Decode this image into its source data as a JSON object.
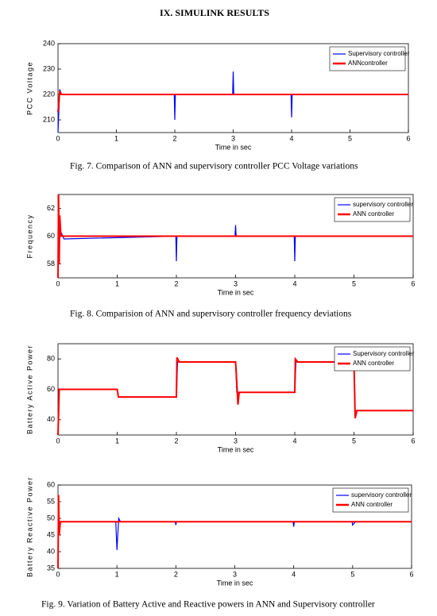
{
  "heading": "IX. SIMULINK RESULTS",
  "captions": [
    "Fig. 7. Comparison of ANN and supervisory controller PCC Voltage variations",
    "Fig. 8. Comparision of ANN and supervisory controller frequency deviations",
    "Fig. 9. Variation of Battery Active and Reactive powers in ANN and Supervisory controller"
  ],
  "chart_data": [
    {
      "type": "line",
      "xlabel": "Time in sec",
      "ylabel": "PCC Voltage",
      "xlim": [
        0,
        6
      ],
      "xticks": [
        0,
        1,
        2,
        3,
        4,
        5,
        6
      ],
      "ylim": [
        205,
        240
      ],
      "yticks": [
        210,
        220,
        230,
        240
      ],
      "series": [
        {
          "name": "Supervisory controller",
          "color": "#0000ff",
          "x": [
            0,
            0.03,
            0.06,
            1.99,
            2.0,
            2.01,
            2.99,
            3.0,
            3.01,
            3.99,
            4.0,
            4.01,
            6
          ],
          "values": [
            205,
            222,
            220,
            220,
            210,
            220,
            220,
            229,
            220,
            220,
            211,
            220,
            220
          ]
        },
        {
          "name": "ANNcontroller",
          "color": "#ff0000",
          "x": [
            0,
            0.03,
            0.06,
            6
          ],
          "values": [
            213,
            221,
            220,
            220
          ]
        }
      ]
    },
    {
      "type": "line",
      "xlabel": "Time in sec",
      "ylabel": "Frequency",
      "xlim": [
        0,
        6
      ],
      "xticks": [
        0,
        1,
        2,
        3,
        4,
        5,
        6
      ],
      "ylim": [
        57,
        63
      ],
      "yticks": [
        58,
        60,
        62
      ],
      "series": [
        {
          "name": "supervisory controller",
          "color": "#0000ff",
          "x": [
            0,
            0.05,
            0.1,
            1.99,
            2.0,
            2.01,
            2.99,
            3.0,
            3.01,
            3.99,
            4.0,
            4.01,
            6
          ],
          "values": [
            60,
            60.3,
            59.8,
            60,
            58.2,
            60,
            60,
            60.8,
            60,
            60,
            58.2,
            60,
            60
          ]
        },
        {
          "name": "ANN controller",
          "color": "#ff0000",
          "x": [
            0,
            0.01,
            0.02,
            0.03,
            0.05,
            6
          ],
          "values": [
            57,
            63,
            58,
            61.5,
            60,
            60
          ]
        }
      ]
    },
    {
      "type": "line",
      "xlabel": "Time in sec",
      "ylabel": "Battery Active Power",
      "xlim": [
        0,
        6
      ],
      "xticks": [
        0,
        1,
        2,
        3,
        4,
        5,
        6
      ],
      "ylim": [
        30,
        90
      ],
      "yticks": [
        40,
        60,
        80
      ],
      "series": [
        {
          "name": "Supervisory controller",
          "color": "#0000ff",
          "x": [
            0,
            0.02,
            1,
            1.02,
            2,
            2.02,
            3,
            3.02,
            4,
            4.02,
            5,
            5.02,
            6
          ],
          "values": [
            30,
            60,
            60,
            55,
            55,
            78,
            78,
            58,
            58,
            78,
            78,
            46,
            46
          ]
        },
        {
          "name": "ANN controller",
          "color": "#ff0000",
          "x": [
            0,
            0.02,
            1,
            1.02,
            2,
            2.01,
            2.05,
            3,
            3.01,
            3.04,
            3.06,
            4,
            4.01,
            4.05,
            5,
            5.02,
            5.05,
            6
          ],
          "values": [
            30,
            60,
            60,
            55,
            55,
            81,
            78,
            78,
            72,
            50,
            58,
            58,
            80,
            78,
            78,
            41,
            46,
            46
          ]
        }
      ]
    },
    {
      "type": "line",
      "xlabel": "Time in sec",
      "ylabel": "Battery Reactive Power",
      "xlim": [
        0,
        6
      ],
      "xticks": [
        0,
        1,
        2,
        3,
        4,
        5,
        6
      ],
      "ylim": [
        35,
        60
      ],
      "yticks": [
        35,
        40,
        45,
        50,
        55,
        60
      ],
      "series": [
        {
          "name": "supervisory controller",
          "color": "#0000ff",
          "x": [
            0,
            0.05,
            0.98,
            1.0,
            1.03,
            1.06,
            1.99,
            2.0,
            2.01,
            3.99,
            4.0,
            4.01,
            4.99,
            5.0,
            5.05,
            6
          ],
          "values": [
            49,
            49,
            49,
            40.5,
            50,
            49,
            49,
            48,
            49,
            49,
            47.5,
            49,
            49,
            48,
            49,
            49
          ]
        },
        {
          "name": "ANN controller",
          "color": "#ff0000",
          "x": [
            0,
            0.01,
            0.02,
            0.04,
            6
          ],
          "values": [
            35,
            57,
            45,
            49,
            49
          ]
        }
      ]
    }
  ]
}
